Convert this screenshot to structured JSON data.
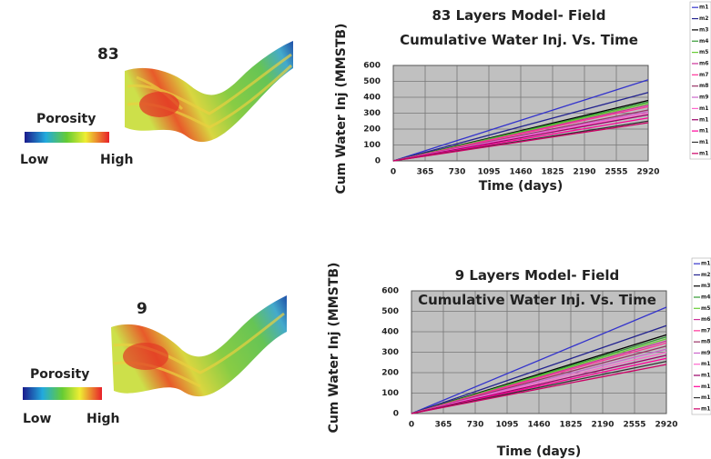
{
  "chart_data": [
    {
      "type": "line",
      "title": "83 Layers Model- Field Cumulative Water Inj. Vs. Time",
      "x_label": "Time (days)",
      "y_label": "Cum Water Inj (MMSTB)",
      "x": [
        0,
        2920
      ],
      "xlim": [
        0,
        2920
      ],
      "xticks": [
        0,
        365,
        730,
        1095,
        1460,
        1825,
        2190,
        2555,
        2920
      ],
      "ylim": [
        0,
        600
      ],
      "yticks": [
        0,
        100,
        200,
        300,
        400,
        500,
        600
      ],
      "grid": true,
      "series": [
        {
          "name": "m1",
          "color": "#3333cc",
          "values": [
            0,
            510
          ]
        },
        {
          "name": "m2",
          "color": "#22228f",
          "values": [
            0,
            430
          ]
        },
        {
          "name": "m3",
          "color": "#000000",
          "values": [
            0,
            380
          ]
        },
        {
          "name": "m4",
          "color": "#339933",
          "values": [
            0,
            370
          ]
        },
        {
          "name": "m5",
          "color": "#66cc33",
          "values": [
            0,
            360
          ]
        },
        {
          "name": "m6",
          "color": "#cc3399",
          "values": [
            0,
            350
          ]
        },
        {
          "name": "m7",
          "color": "#ff3399",
          "values": [
            0,
            340
          ]
        },
        {
          "name": "m8",
          "color": "#993366",
          "values": [
            0,
            320
          ]
        },
        {
          "name": "m9",
          "color": "#cc66cc",
          "values": [
            0,
            310
          ]
        },
        {
          "name": "m1",
          "color": "#ff66cc",
          "values": [
            0,
            300
          ]
        },
        {
          "name": "m1",
          "color": "#990066",
          "values": [
            0,
            290
          ]
        },
        {
          "name": "m1",
          "color": "#ff0099",
          "values": [
            0,
            270
          ]
        },
        {
          "name": "m1",
          "color": "#333333",
          "values": [
            0,
            250
          ]
        },
        {
          "name": "m1",
          "color": "#cc0066",
          "values": [
            0,
            240
          ]
        }
      ]
    },
    {
      "type": "line",
      "title": "9 Layers Model- Field Cumulative Water Inj. Vs. Time",
      "x_label": "Time (days)",
      "y_label": "Cum Water Inj (MMSTB)",
      "x": [
        0,
        2920
      ],
      "xlim": [
        0,
        2920
      ],
      "xticks": [
        0,
        365,
        730,
        1095,
        1460,
        1825,
        2190,
        2555,
        2920
      ],
      "ylim": [
        0,
        600
      ],
      "yticks": [
        0,
        100,
        200,
        300,
        400,
        500,
        600
      ],
      "grid": true,
      "series": [
        {
          "name": "m1",
          "color": "#3333cc",
          "values": [
            0,
            520
          ]
        },
        {
          "name": "m2",
          "color": "#22228f",
          "values": [
            0,
            430
          ]
        },
        {
          "name": "m3",
          "color": "#000000",
          "values": [
            0,
            385
          ]
        },
        {
          "name": "m4",
          "color": "#339933",
          "values": [
            0,
            375
          ]
        },
        {
          "name": "m5",
          "color": "#66cc33",
          "values": [
            0,
            365
          ]
        },
        {
          "name": "m6",
          "color": "#cc3399",
          "values": [
            0,
            355
          ]
        },
        {
          "name": "m7",
          "color": "#ff3399",
          "values": [
            0,
            345
          ]
        },
        {
          "name": "m8",
          "color": "#993366",
          "values": [
            0,
            330
          ]
        },
        {
          "name": "m9",
          "color": "#cc66cc",
          "values": [
            0,
            315
          ]
        },
        {
          "name": "m1",
          "color": "#ff66cc",
          "values": [
            0,
            300
          ]
        },
        {
          "name": "m1",
          "color": "#990066",
          "values": [
            0,
            285
          ]
        },
        {
          "name": "m1",
          "color": "#ff0099",
          "values": [
            0,
            270
          ]
        },
        {
          "name": "m1",
          "color": "#333333",
          "values": [
            0,
            255
          ]
        },
        {
          "name": "m1",
          "color": "#cc0066",
          "values": [
            0,
            240
          ]
        }
      ]
    }
  ],
  "images": [
    {
      "label": "83",
      "legend_title": "Porosity",
      "low": "Low",
      "high": "High"
    },
    {
      "label": "9",
      "legend_title": "Porosity",
      "low": "Low",
      "high": "High"
    }
  ]
}
